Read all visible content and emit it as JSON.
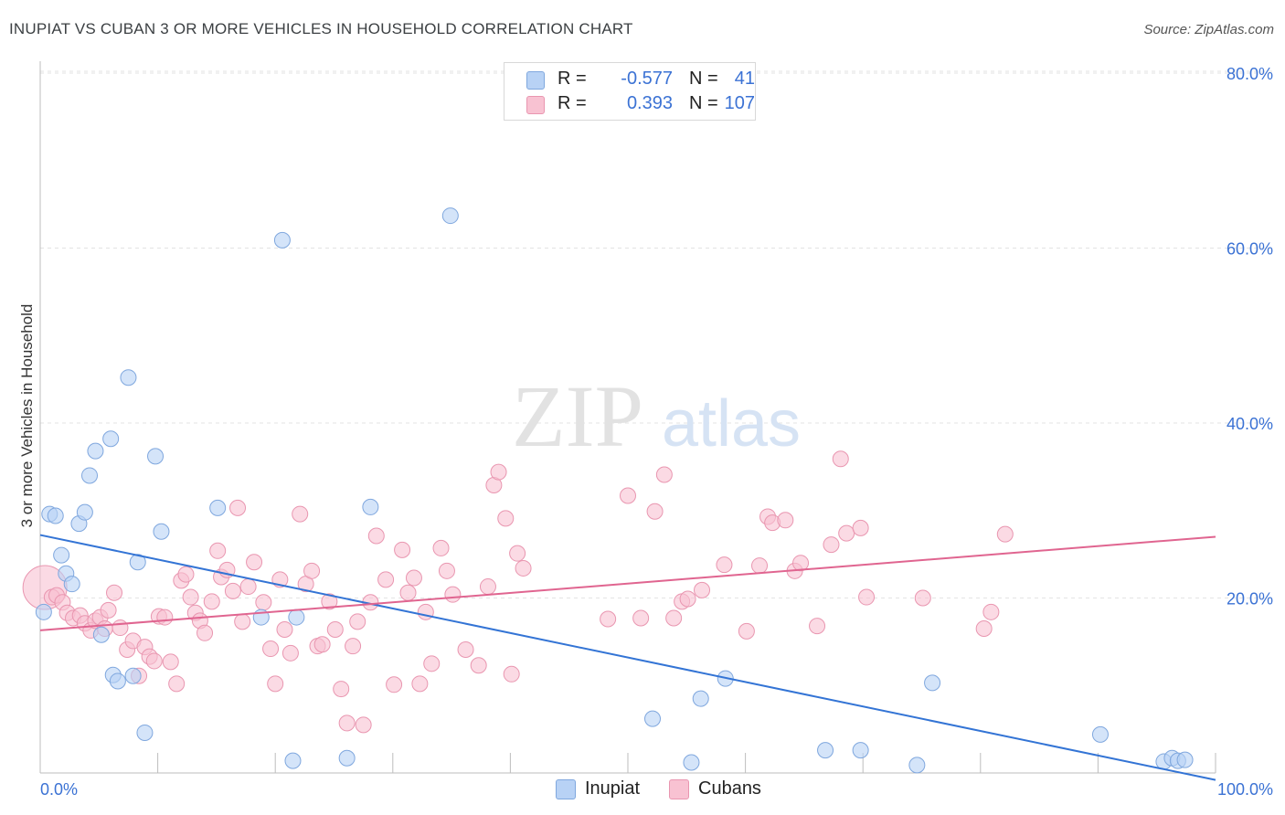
{
  "header": {
    "title": "INUPIAT VS CUBAN 3 OR MORE VEHICLES IN HOUSEHOLD CORRELATION CHART",
    "source": "Source: ZipAtlas.com"
  },
  "watermark": {
    "zip": "ZIP",
    "atlas": "atlas"
  },
  "legend": {
    "rows": [
      {
        "r_label": "R =",
        "r_value": "-0.577",
        "n_label": "N =",
        "n_value": "41"
      },
      {
        "r_label": "R =",
        "r_value": "0.393",
        "n_label": "N =",
        "n_value": "107"
      }
    ]
  },
  "bottom_legend": {
    "items": [
      "Inupiat",
      "Cubans"
    ]
  },
  "colors": {
    "inupiat_fill": "#b8d2f5",
    "inupiat_stroke": "#7fa7de",
    "inupiat_line": "#3374d5",
    "cubans_fill": "#f8c2d2",
    "cubans_stroke": "#e996b0",
    "cubans_line": "#e06590",
    "tick_label": "#3b72d4"
  },
  "chart_data": {
    "type": "scatter",
    "title": "INUPIAT VS CUBAN 3 OR MORE VEHICLES IN HOUSEHOLD CORRELATION CHART",
    "xlabel": "",
    "ylabel": "3 or more Vehicles in Household",
    "xlim": [
      0,
      100
    ],
    "ylim": [
      0,
      80
    ],
    "x_tick_labels": [
      "0.0%",
      "100.0%"
    ],
    "y_ticks": [
      20,
      40,
      60,
      80
    ],
    "y_tick_labels": [
      "20.0%",
      "40.0%",
      "60.0%",
      "80.0%"
    ],
    "grid": "horizontal dashed",
    "legend_position": "top-center",
    "series": [
      {
        "name": "Inupiat",
        "points": [
          [
            0.3,
            18.4
          ],
          [
            0.8,
            29.6
          ],
          [
            1.3,
            29.4
          ],
          [
            1.8,
            24.9
          ],
          [
            2.2,
            22.8
          ],
          [
            2.7,
            21.6
          ],
          [
            3.3,
            28.5
          ],
          [
            3.8,
            29.8
          ],
          [
            4.2,
            34.0
          ],
          [
            4.7,
            36.8
          ],
          [
            5.2,
            15.8
          ],
          [
            6.0,
            38.2
          ],
          [
            6.2,
            11.2
          ],
          [
            6.6,
            10.5
          ],
          [
            7.5,
            45.2
          ],
          [
            7.9,
            11.1
          ],
          [
            8.3,
            24.1
          ],
          [
            8.9,
            4.6
          ],
          [
            9.8,
            36.2
          ],
          [
            10.3,
            27.6
          ],
          [
            15.1,
            30.3
          ],
          [
            18.8,
            17.8
          ],
          [
            20.6,
            60.9
          ],
          [
            21.5,
            1.4
          ],
          [
            21.8,
            17.8
          ],
          [
            26.1,
            1.7
          ],
          [
            28.1,
            30.4
          ],
          [
            34.9,
            63.7
          ],
          [
            52.1,
            6.2
          ],
          [
            55.4,
            1.2
          ],
          [
            56.2,
            8.5
          ],
          [
            58.3,
            10.8
          ],
          [
            66.8,
            2.6
          ],
          [
            69.8,
            2.6
          ],
          [
            74.6,
            0.9
          ],
          [
            75.9,
            10.3
          ],
          [
            90.2,
            4.4
          ],
          [
            95.6,
            1.3
          ],
          [
            96.3,
            1.7
          ],
          [
            96.8,
            1.4
          ],
          [
            97.4,
            1.5
          ]
        ],
        "trend": [
          [
            0,
            27.2
          ],
          [
            100,
            -0.8
          ]
        ]
      },
      {
        "name": "Cubans",
        "points": [
          [
            0.4,
            21.2
          ],
          [
            1.0,
            20.1
          ],
          [
            1.4,
            20.3
          ],
          [
            1.9,
            19.5
          ],
          [
            2.3,
            18.3
          ],
          [
            2.8,
            17.7
          ],
          [
            3.4,
            18.0
          ],
          [
            3.8,
            17.1
          ],
          [
            4.3,
            16.3
          ],
          [
            4.7,
            17.4
          ],
          [
            5.1,
            17.8
          ],
          [
            5.5,
            16.5
          ],
          [
            5.8,
            18.6
          ],
          [
            6.3,
            20.6
          ],
          [
            6.8,
            16.6
          ],
          [
            7.4,
            14.1
          ],
          [
            7.9,
            15.1
          ],
          [
            8.4,
            11.1
          ],
          [
            8.9,
            14.4
          ],
          [
            9.3,
            13.3
          ],
          [
            9.7,
            12.8
          ],
          [
            10.1,
            17.9
          ],
          [
            10.6,
            17.8
          ],
          [
            11.1,
            12.7
          ],
          [
            11.6,
            10.2
          ],
          [
            12.0,
            22.0
          ],
          [
            12.4,
            22.7
          ],
          [
            12.8,
            20.1
          ],
          [
            13.2,
            18.3
          ],
          [
            13.6,
            17.4
          ],
          [
            14.0,
            16.0
          ],
          [
            14.6,
            19.6
          ],
          [
            15.1,
            25.4
          ],
          [
            15.4,
            22.4
          ],
          [
            15.9,
            23.2
          ],
          [
            16.4,
            20.8
          ],
          [
            16.8,
            30.3
          ],
          [
            17.2,
            17.3
          ],
          [
            17.7,
            21.3
          ],
          [
            18.2,
            24.1
          ],
          [
            19.0,
            19.5
          ],
          [
            19.6,
            14.2
          ],
          [
            20.0,
            10.2
          ],
          [
            20.4,
            22.1
          ],
          [
            20.8,
            16.4
          ],
          [
            21.3,
            13.7
          ],
          [
            22.1,
            29.6
          ],
          [
            22.6,
            21.6
          ],
          [
            23.1,
            23.1
          ],
          [
            23.6,
            14.5
          ],
          [
            24.0,
            14.7
          ],
          [
            24.6,
            19.6
          ],
          [
            25.1,
            16.4
          ],
          [
            25.6,
            9.6
          ],
          [
            26.1,
            5.7
          ],
          [
            26.6,
            14.5
          ],
          [
            27.0,
            17.3
          ],
          [
            27.5,
            5.5
          ],
          [
            28.1,
            19.5
          ],
          [
            28.6,
            27.1
          ],
          [
            29.4,
            22.1
          ],
          [
            30.1,
            10.1
          ],
          [
            30.8,
            25.5
          ],
          [
            31.3,
            20.6
          ],
          [
            31.8,
            22.3
          ],
          [
            32.3,
            10.2
          ],
          [
            32.8,
            18.4
          ],
          [
            33.3,
            12.5
          ],
          [
            34.1,
            25.7
          ],
          [
            34.6,
            23.1
          ],
          [
            35.1,
            20.4
          ],
          [
            36.2,
            14.1
          ],
          [
            37.3,
            12.3
          ],
          [
            38.1,
            21.3
          ],
          [
            38.6,
            32.9
          ],
          [
            39.0,
            34.4
          ],
          [
            39.6,
            29.1
          ],
          [
            40.1,
            11.3
          ],
          [
            40.6,
            25.1
          ],
          [
            41.1,
            23.4
          ],
          [
            48.3,
            17.6
          ],
          [
            50.0,
            31.7
          ],
          [
            51.1,
            17.7
          ],
          [
            52.3,
            29.9
          ],
          [
            53.1,
            34.1
          ],
          [
            53.9,
            17.7
          ],
          [
            54.6,
            19.6
          ],
          [
            55.1,
            19.9
          ],
          [
            56.3,
            20.9
          ],
          [
            58.2,
            23.8
          ],
          [
            60.1,
            16.2
          ],
          [
            61.2,
            23.7
          ],
          [
            61.9,
            29.3
          ],
          [
            62.3,
            28.6
          ],
          [
            63.4,
            28.9
          ],
          [
            64.2,
            23.1
          ],
          [
            64.7,
            24.0
          ],
          [
            66.1,
            16.8
          ],
          [
            67.3,
            26.1
          ],
          [
            68.1,
            35.9
          ],
          [
            68.6,
            27.4
          ],
          [
            69.8,
            28.0
          ],
          [
            70.3,
            20.1
          ],
          [
            75.1,
            20.0
          ],
          [
            80.3,
            16.5
          ],
          [
            80.9,
            18.4
          ],
          [
            82.1,
            27.3
          ]
        ],
        "trend": [
          [
            0,
            16.3
          ],
          [
            100,
            27.0
          ]
        ]
      }
    ]
  },
  "axes": {
    "y_axis_label": "3 or more Vehicles in Household"
  }
}
